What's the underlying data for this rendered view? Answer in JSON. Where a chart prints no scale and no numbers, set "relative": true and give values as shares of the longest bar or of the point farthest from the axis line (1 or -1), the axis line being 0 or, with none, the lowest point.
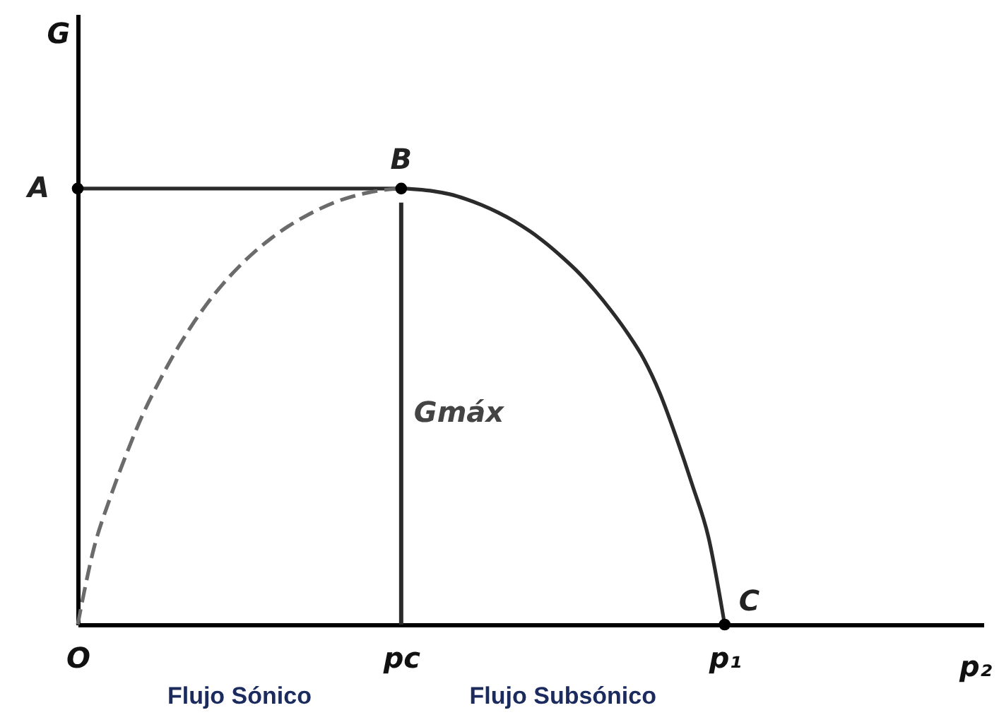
{
  "chart_data": {
    "type": "line",
    "relative": true,
    "xlabel": "p₂",
    "ylabel": "G",
    "tick_labels": "x",
    "categories": [
      "O",
      null,
      null,
      null,
      null,
      null,
      null,
      null,
      null,
      null,
      null,
      null,
      null,
      null,
      null,
      null,
      null,
      null,
      null,
      null,
      "pc",
      null,
      null,
      null,
      null,
      null,
      null,
      null,
      null,
      null,
      null,
      null,
      null,
      null,
      null,
      null,
      null,
      null,
      null,
      null,
      "p₁",
      null,
      null,
      null,
      null,
      null,
      null,
      null,
      null,
      null,
      null,
      null,
      null,
      null,
      null,
      null,
      null
    ],
    "series": [
      {
        "color": "#2b2b2b",
        "line_style": "solid",
        "values": [
          1,
          1,
          1,
          1,
          1,
          1,
          1,
          1,
          1,
          1,
          1,
          1,
          1,
          1,
          1,
          1,
          1,
          1,
          1,
          1,
          1,
          0.998,
          0.994,
          0.987,
          0.976,
          0.962,
          0.945,
          0.925,
          0.901,
          0.873,
          0.841,
          0.806,
          0.765,
          0.719,
          0.668,
          0.609,
          0.53,
          0.43,
          0.32,
          0.2,
          0,
          null,
          null,
          null,
          null,
          null,
          null,
          null,
          null,
          null,
          null,
          null,
          null,
          null,
          null,
          null,
          null
        ]
      },
      {
        "color": "#6b6b6b",
        "line_style": "dashed",
        "values": [
          0,
          0.175,
          0.29,
          0.39,
          0.48,
          0.555,
          0.623,
          0.683,
          0.736,
          0.782,
          0.822,
          0.857,
          0.887,
          0.913,
          0.935,
          0.954,
          0.97,
          0.982,
          0.991,
          0.997,
          1,
          null,
          null,
          null,
          null,
          null,
          null,
          null,
          null,
          null,
          null,
          null,
          null,
          null,
          null,
          null,
          null,
          null,
          null,
          null,
          null,
          null,
          null,
          null,
          null,
          null,
          null,
          null,
          null,
          null,
          null,
          null,
          null,
          null,
          null,
          null,
          null
        ]
      },
      {
        "type": "scatter",
        "color": "#000000",
        "marker": "circle",
        "values": [
          1,
          null,
          null,
          null,
          null,
          null,
          null,
          null,
          null,
          null,
          null,
          null,
          null,
          null,
          null,
          null,
          null,
          null,
          null,
          null,
          1,
          null,
          null,
          null,
          null,
          null,
          null,
          null,
          null,
          null,
          null,
          null,
          null,
          null,
          null,
          null,
          null,
          null,
          null,
          null,
          0,
          null,
          null,
          null,
          null,
          null,
          null,
          null,
          null,
          null,
          null,
          null,
          null,
          null,
          null,
          null,
          null
        ]
      }
    ],
    "ref_lines": [
      {
        "axis": "x",
        "value": "pc",
        "label": "Gmáx",
        "color": "#2b2b2b"
      }
    ],
    "annotations": [
      {
        "text": "A",
        "x": "O",
        "y": 1
      },
      {
        "text": "B",
        "x": "pc",
        "y": 1
      },
      {
        "text": "C",
        "x": "p₁",
        "y": 0
      },
      "Flujo Sónico",
      "Flujo Subsónico"
    ]
  }
}
